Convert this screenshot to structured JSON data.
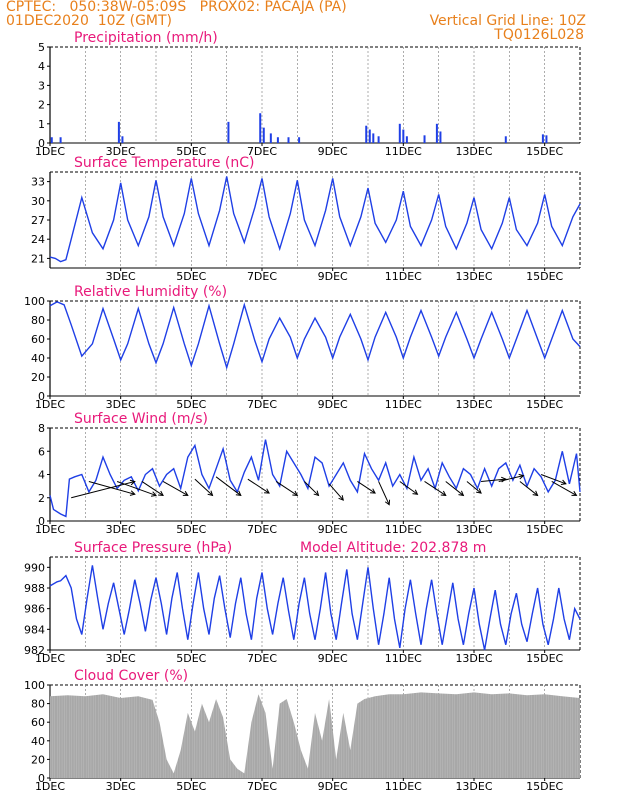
{
  "header": {
    "line1": "CPTEC:   050:38W-05:09S   PROX02: PACAJA (PA)",
    "line2": "01DEC2020  10Z (GMT)",
    "grid_note": "Vertical Grid Line: 10Z",
    "code": "TQ0126L028"
  },
  "colors": {
    "header": "#e8801c",
    "title": "#e8197a",
    "series": "#1f3fe6",
    "cloud": "#a8a8a8",
    "arrow": "#000000"
  },
  "chart_data": [
    {
      "type": "bar",
      "title": "Precipitation (mm/h)",
      "ylim": [
        0,
        5
      ],
      "yticks": [
        0,
        1,
        2,
        3,
        4,
        5
      ],
      "xticks": [
        "1DEC",
        "3DEC",
        "5DEC",
        "7DEC",
        "9DEC",
        "11DEC",
        "13DEC",
        "15DEC"
      ],
      "bars": [
        [
          1.05,
          0.3
        ],
        [
          1.3,
          0.3
        ],
        [
          2.95,
          1.1
        ],
        [
          3.05,
          0.35
        ],
        [
          6.05,
          1.1
        ],
        [
          6.95,
          1.55
        ],
        [
          7.05,
          0.8
        ],
        [
          7.25,
          0.5
        ],
        [
          7.45,
          0.3
        ],
        [
          7.75,
          0.3
        ],
        [
          8.05,
          0.3
        ],
        [
          9.95,
          0.9
        ],
        [
          10.05,
          0.7
        ],
        [
          10.15,
          0.5
        ],
        [
          10.3,
          0.35
        ],
        [
          10.9,
          1.0
        ],
        [
          11.0,
          0.7
        ],
        [
          11.1,
          0.35
        ],
        [
          11.6,
          0.4
        ],
        [
          11.95,
          1.0
        ],
        [
          12.05,
          0.6
        ],
        [
          13.9,
          0.35
        ],
        [
          14.95,
          0.45
        ],
        [
          15.05,
          0.4
        ]
      ]
    },
    {
      "type": "line",
      "title": "Surface Temperature (nC)",
      "ylim": [
        19.5,
        34.5
      ],
      "yticks": [
        21,
        24,
        27,
        30,
        33
      ],
      "xticks": [
        "3DEC",
        "5DEC",
        "7DEC",
        "9DEC",
        "11DEC",
        "13DEC",
        "15DEC"
      ],
      "x": [
        1.0,
        1.15,
        1.3,
        1.45,
        1.6,
        1.9,
        2.2,
        2.5,
        2.8,
        3.0,
        3.2,
        3.5,
        3.8,
        4.0,
        4.2,
        4.5,
        4.8,
        5.0,
        5.2,
        5.5,
        5.8,
        6.0,
        6.2,
        6.5,
        6.8,
        7.0,
        7.2,
        7.5,
        7.8,
        8.0,
        8.2,
        8.5,
        8.8,
        9.0,
        9.2,
        9.5,
        9.8,
        10.0,
        10.2,
        10.5,
        10.8,
        11.0,
        11.2,
        11.5,
        11.8,
        12.0,
        12.2,
        12.5,
        12.8,
        13.0,
        13.2,
        13.5,
        13.8,
        14.0,
        14.2,
        14.5,
        14.8,
        15.0,
        15.2,
        15.5,
        15.8,
        16.0
      ],
      "y": [
        21.2,
        21.0,
        20.5,
        20.8,
        24.0,
        30.5,
        25.0,
        22.5,
        27.0,
        32.8,
        27.0,
        23.0,
        27.5,
        33.2,
        27.5,
        23.0,
        28.0,
        33.5,
        28.0,
        23.0,
        28.5,
        33.8,
        28.0,
        23.5,
        29.0,
        33.5,
        27.5,
        22.5,
        28.0,
        33.2,
        27.0,
        23.0,
        28.5,
        33.5,
        27.5,
        23.0,
        27.5,
        32.0,
        26.5,
        23.5,
        27.0,
        31.5,
        26.0,
        23.0,
        27.0,
        31.0,
        26.0,
        22.5,
        26.5,
        30.5,
        25.5,
        22.5,
        26.5,
        30.5,
        25.5,
        23.0,
        26.5,
        31.0,
        26.0,
        23.0,
        27.5,
        29.5
      ]
    },
    {
      "type": "line",
      "title": "Relative Humidity (%)",
      "ylim": [
        0,
        100
      ],
      "yticks": [
        0,
        20,
        40,
        60,
        80,
        100
      ],
      "xticks": [
        "1DEC",
        "3DEC",
        "5DEC",
        "7DEC",
        "9DEC",
        "11DEC",
        "13DEC",
        "15DEC"
      ],
      "x": [
        1.0,
        1.2,
        1.4,
        1.6,
        1.9,
        2.2,
        2.5,
        2.8,
        3.0,
        3.2,
        3.5,
        3.8,
        4.0,
        4.2,
        4.5,
        4.8,
        5.0,
        5.2,
        5.5,
        5.8,
        6.0,
        6.2,
        6.5,
        6.8,
        7.0,
        7.2,
        7.5,
        7.8,
        8.0,
        8.2,
        8.5,
        8.8,
        9.0,
        9.2,
        9.5,
        9.8,
        10.0,
        10.2,
        10.5,
        10.8,
        11.0,
        11.2,
        11.5,
        11.8,
        12.0,
        12.2,
        12.5,
        12.8,
        13.0,
        13.2,
        13.5,
        13.8,
        14.0,
        14.2,
        14.5,
        14.8,
        15.0,
        15.2,
        15.5,
        15.8,
        16.0
      ],
      "y": [
        95,
        99,
        96,
        75,
        42,
        55,
        92,
        60,
        38,
        55,
        92,
        55,
        35,
        55,
        93,
        55,
        32,
        55,
        95,
        55,
        30,
        55,
        96,
        58,
        36,
        60,
        82,
        62,
        40,
        60,
        82,
        62,
        40,
        62,
        86,
        60,
        38,
        62,
        88,
        62,
        40,
        62,
        90,
        62,
        42,
        62,
        88,
        60,
        40,
        60,
        88,
        60,
        40,
        60,
        90,
        60,
        40,
        60,
        90,
        60,
        52
      ]
    },
    {
      "type": "line",
      "title": "Surface Wind (m/s)",
      "ylim": [
        0,
        8
      ],
      "yticks": [
        0,
        2,
        4,
        6,
        8
      ],
      "xticks": [
        "1DEC",
        "3DEC",
        "5DEC",
        "7DEC",
        "9DEC",
        "11DEC",
        "13DEC",
        "15DEC"
      ],
      "x": [
        1.0,
        1.1,
        1.3,
        1.45,
        1.55,
        1.7,
        1.9,
        2.1,
        2.3,
        2.5,
        2.7,
        2.9,
        3.1,
        3.3,
        3.5,
        3.7,
        3.9,
        4.1,
        4.3,
        4.5,
        4.7,
        4.9,
        5.1,
        5.3,
        5.5,
        5.7,
        5.9,
        6.1,
        6.3,
        6.5,
        6.7,
        6.9,
        7.1,
        7.3,
        7.5,
        7.7,
        7.9,
        8.1,
        8.3,
        8.5,
        8.7,
        8.9,
        9.1,
        9.3,
        9.5,
        9.7,
        9.9,
        10.1,
        10.3,
        10.5,
        10.7,
        10.9,
        11.1,
        11.3,
        11.5,
        11.7,
        11.9,
        12.1,
        12.3,
        12.5,
        12.7,
        12.9,
        13.1,
        13.3,
        13.5,
        13.7,
        13.9,
        14.1,
        14.3,
        14.5,
        14.7,
        14.9,
        15.1,
        15.3,
        15.5,
        15.7,
        15.9,
        16.0
      ],
      "y": [
        2.2,
        1.0,
        0.6,
        0.4,
        3.6,
        3.8,
        4.0,
        2.5,
        3.5,
        5.5,
        4.0,
        2.8,
        3.5,
        3.8,
        2.6,
        4.0,
        4.5,
        3.0,
        4.0,
        4.5,
        2.8,
        5.5,
        6.5,
        4.0,
        2.8,
        4.5,
        6.2,
        3.5,
        2.5,
        4.2,
        5.5,
        3.5,
        7.0,
        4.0,
        3.0,
        6.0,
        5.0,
        4.0,
        2.8,
        5.5,
        5.0,
        3.0,
        4.0,
        5.0,
        3.5,
        2.5,
        5.8,
        4.5,
        3.5,
        5.0,
        3.0,
        4.0,
        2.8,
        5.5,
        3.5,
        4.5,
        2.8,
        5.0,
        3.8,
        2.8,
        4.5,
        4.0,
        2.8,
        4.5,
        3.0,
        4.5,
        5.0,
        3.5,
        4.8,
        3.0,
        4.5,
        3.8,
        2.5,
        3.5,
        6.0,
        3.2,
        5.8,
        2.5
      ],
      "arrows": [
        [
          1.6,
          2.0,
          3.4,
          3.4
        ],
        [
          2.1,
          3.4,
          3.4,
          2.3
        ],
        [
          2.9,
          3.4,
          4.0,
          2.2
        ],
        [
          3.6,
          3.4,
          4.2,
          2.2
        ],
        [
          4.2,
          3.4,
          4.9,
          2.2
        ],
        [
          5.1,
          3.6,
          5.6,
          2.2
        ],
        [
          5.7,
          3.8,
          6.4,
          2.2
        ],
        [
          6.6,
          3.6,
          7.2,
          2.4
        ],
        [
          7.4,
          3.4,
          8.0,
          2.2
        ],
        [
          8.2,
          3.4,
          8.6,
          2.2
        ],
        [
          8.9,
          3.2,
          9.3,
          1.8
        ],
        [
          9.7,
          3.4,
          10.2,
          2.4
        ],
        [
          10.3,
          3.4,
          10.6,
          1.4
        ],
        [
          10.9,
          3.4,
          11.4,
          2.3
        ],
        [
          11.6,
          3.4,
          12.2,
          2.2
        ],
        [
          12.2,
          3.4,
          12.7,
          2.2
        ],
        [
          12.8,
          3.4,
          13.2,
          2.4
        ],
        [
          13.2,
          3.4,
          13.9,
          3.6
        ],
        [
          13.7,
          3.4,
          14.4,
          3.9
        ],
        [
          14.3,
          3.4,
          14.8,
          2.2
        ],
        [
          14.9,
          4.0,
          15.6,
          3.2
        ],
        [
          15.2,
          3.4,
          15.9,
          2.2
        ]
      ]
    },
    {
      "type": "line",
      "title": "Surface Pressure (hPa)",
      "annotation": "Model Altitude: 202.878  m",
      "ylim": [
        982,
        991
      ],
      "yticks": [
        982,
        984,
        986,
        988,
        990
      ],
      "xticks": [
        "1DEC",
        "3DEC",
        "5DEC",
        "7DEC",
        "9DEC",
        "11DEC",
        "13DEC",
        "15DEC"
      ],
      "x": [
        1.0,
        1.1,
        1.2,
        1.3,
        1.45,
        1.6,
        1.75,
        1.9,
        2.05,
        2.2,
        2.35,
        2.5,
        2.65,
        2.8,
        2.95,
        3.1,
        3.25,
        3.4,
        3.55,
        3.7,
        3.85,
        4.0,
        4.15,
        4.3,
        4.45,
        4.6,
        4.75,
        4.9,
        5.05,
        5.2,
        5.35,
        5.5,
        5.65,
        5.8,
        5.95,
        6.1,
        6.25,
        6.4,
        6.55,
        6.7,
        6.85,
        7.0,
        7.15,
        7.3,
        7.45,
        7.6,
        7.75,
        7.9,
        8.05,
        8.2,
        8.35,
        8.5,
        8.65,
        8.8,
        8.95,
        9.1,
        9.25,
        9.4,
        9.55,
        9.7,
        9.85,
        10.0,
        10.15,
        10.3,
        10.45,
        10.6,
        10.75,
        10.9,
        11.05,
        11.2,
        11.35,
        11.5,
        11.65,
        11.8,
        11.95,
        12.1,
        12.25,
        12.4,
        12.55,
        12.7,
        12.85,
        13.0,
        13.15,
        13.3,
        13.45,
        13.6,
        13.75,
        13.9,
        14.05,
        14.2,
        14.35,
        14.5,
        14.65,
        14.8,
        14.95,
        15.1,
        15.25,
        15.4,
        15.55,
        15.7,
        15.85,
        16.0
      ],
      "y": [
        988.2,
        988.4,
        988.6,
        988.7,
        989.2,
        988.0,
        985.0,
        983.5,
        987.0,
        990.2,
        987.0,
        984.0,
        986.5,
        988.5,
        986.0,
        983.5,
        986.0,
        988.8,
        986.5,
        983.8,
        986.8,
        989.0,
        986.5,
        983.5,
        987.0,
        989.5,
        986.0,
        983.0,
        986.5,
        989.5,
        986.0,
        983.5,
        987.0,
        989.2,
        986.0,
        983.2,
        986.5,
        989.0,
        985.5,
        983.0,
        987.0,
        989.5,
        986.0,
        983.5,
        986.5,
        989.0,
        985.8,
        983.0,
        986.5,
        989.0,
        985.5,
        983.0,
        986.0,
        989.5,
        985.5,
        983.0,
        986.5,
        989.8,
        985.5,
        983.0,
        986.5,
        990.0,
        986.0,
        982.5,
        985.5,
        989.0,
        985.0,
        982.2,
        986.0,
        988.8,
        985.5,
        982.5,
        986.0,
        988.8,
        985.5,
        982.5,
        985.5,
        988.5,
        985.0,
        982.5,
        985.5,
        988.0,
        984.5,
        982.0,
        985.0,
        987.8,
        984.5,
        982.5,
        985.5,
        987.5,
        984.5,
        982.8,
        985.5,
        988.0,
        984.5,
        982.5,
        985.0,
        988.0,
        985.0,
        983.0,
        986.0,
        985.0
      ]
    },
    {
      "type": "area",
      "title": "Cloud Cover (%)",
      "ylim": [
        0,
        100
      ],
      "yticks": [
        0,
        20,
        40,
        60,
        80,
        100
      ],
      "xticks": [
        "1DEC",
        "3DEC",
        "5DEC",
        "7DEC",
        "9DEC",
        "11DEC",
        "13DEC",
        "15DEC"
      ],
      "x": [
        1.0,
        1.5,
        2.0,
        2.5,
        3.0,
        3.5,
        3.9,
        4.1,
        4.3,
        4.5,
        4.7,
        4.9,
        5.1,
        5.3,
        5.5,
        5.7,
        5.9,
        6.1,
        6.3,
        6.5,
        6.7,
        6.9,
        7.1,
        7.3,
        7.5,
        7.7,
        7.9,
        8.1,
        8.3,
        8.5,
        8.7,
        8.9,
        9.1,
        9.3,
        9.5,
        9.7,
        9.9,
        10.2,
        10.6,
        11.0,
        11.5,
        12.0,
        12.5,
        13.0,
        13.5,
        14.0,
        14.5,
        15.0,
        15.5,
        16.0
      ],
      "y": [
        88,
        89,
        88,
        90,
        86,
        88,
        84,
        60,
        20,
        5,
        30,
        70,
        50,
        80,
        60,
        85,
        65,
        20,
        10,
        5,
        60,
        90,
        70,
        10,
        80,
        85,
        60,
        30,
        10,
        70,
        40,
        85,
        20,
        70,
        30,
        80,
        85,
        88,
        90,
        90,
        92,
        91,
        90,
        92,
        90,
        91,
        89,
        90,
        88,
        86
      ]
    }
  ]
}
